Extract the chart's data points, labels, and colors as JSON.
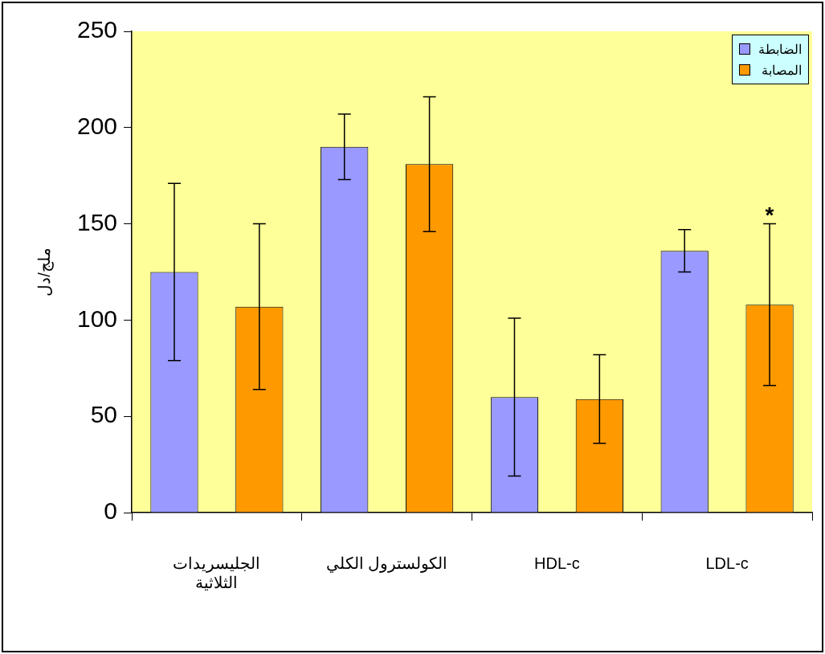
{
  "chart_data": {
    "type": "bar",
    "ylabel": "ملج/دل",
    "categories": [
      "الجليسريدات الثلاثية",
      "الكولسترول الكلي",
      "HDL-c",
      "LDL-c"
    ],
    "series": [
      {
        "name": "الضابطة",
        "color": "#9999ff",
        "values": [
          125,
          190,
          60,
          136
        ],
        "errors": [
          46,
          17,
          41,
          11
        ]
      },
      {
        "name": "المصابة",
        "color": "#ff9900",
        "values": [
          107,
          181,
          59,
          108
        ],
        "errors": [
          43,
          35,
          23,
          42
        ]
      }
    ],
    "ylim": [
      0,
      250
    ],
    "yticks": [
      0,
      50,
      100,
      150,
      200,
      250
    ],
    "grid": false,
    "legend": "top right",
    "annotations": [
      "*"
    ]
  }
}
